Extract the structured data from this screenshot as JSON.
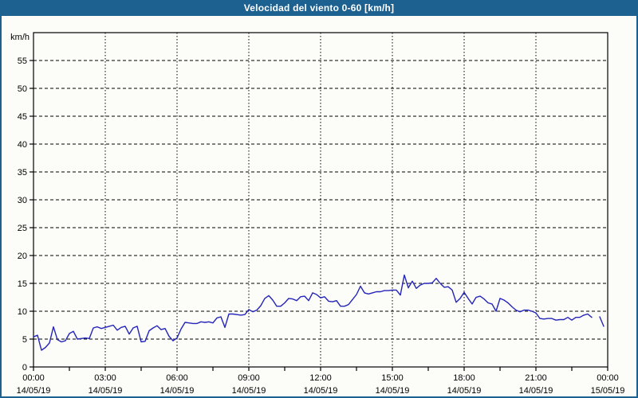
{
  "window": {
    "title": "Velocidad del viento 0-60 [km/h]"
  },
  "colors": {
    "title_bar": "#1d6191",
    "frame_border": "#1d6191",
    "background": "#fcfdf9",
    "plot_border": "#000000",
    "grid": "#000000",
    "tick_text": "#000000",
    "line": "#2424b8"
  },
  "chart_data": {
    "type": "line",
    "title": "Velocidad del viento 0-60 [km/h]",
    "ylabel": "km/h",
    "xlabel": "",
    "ylim": [
      0,
      60
    ],
    "ytick_step": 5,
    "ytick_labels": [
      "0",
      "5",
      "10",
      "15",
      "20",
      "25",
      "30",
      "35",
      "40",
      "45",
      "50",
      "55"
    ],
    "grid": "horizontal dashed every 5 km/h, vertical dotted every 3 h",
    "legend_position": "none",
    "x_axis": {
      "total_minutes": 1440,
      "major_tick_hours": 3,
      "minor_tick_hours": 1.5,
      "ticks": [
        {
          "time": "00:00",
          "date": "14/05/19"
        },
        {
          "time": "03:00",
          "date": "14/05/19"
        },
        {
          "time": "06:00",
          "date": "14/05/19"
        },
        {
          "time": "09:00",
          "date": "14/05/19"
        },
        {
          "time": "12:00",
          "date": "14/05/19"
        },
        {
          "time": "15:00",
          "date": "14/05/19"
        },
        {
          "time": "18:00",
          "date": "14/05/19"
        },
        {
          "time": "21:00",
          "date": "14/05/19"
        },
        {
          "time": "00:00",
          "date": "15/05/19"
        }
      ]
    },
    "series": [
      {
        "name": "Velocidad del viento",
        "unit": "km/h",
        "points": [
          [
            0,
            5.4
          ],
          [
            10,
            5.7
          ],
          [
            20,
            3.0
          ],
          [
            30,
            3.5
          ],
          [
            40,
            4.3
          ],
          [
            50,
            7.2
          ],
          [
            60,
            4.9
          ],
          [
            70,
            4.5
          ],
          [
            80,
            4.7
          ],
          [
            90,
            6.0
          ],
          [
            100,
            6.4
          ],
          [
            110,
            5.0
          ],
          [
            120,
            5.1
          ],
          [
            130,
            5.2
          ],
          [
            140,
            5.1
          ],
          [
            150,
            7.0
          ],
          [
            160,
            7.2
          ],
          [
            170,
            6.9
          ],
          [
            180,
            7.1
          ],
          [
            190,
            7.3
          ],
          [
            200,
            7.5
          ],
          [
            210,
            6.6
          ],
          [
            220,
            7.1
          ],
          [
            230,
            7.3
          ],
          [
            240,
            5.9
          ],
          [
            250,
            7.0
          ],
          [
            260,
            7.3
          ],
          [
            270,
            4.5
          ],
          [
            280,
            4.6
          ],
          [
            290,
            6.5
          ],
          [
            300,
            7.0
          ],
          [
            310,
            7.4
          ],
          [
            320,
            6.7
          ],
          [
            330,
            6.9
          ],
          [
            340,
            5.5
          ],
          [
            350,
            4.7
          ],
          [
            360,
            5.2
          ],
          [
            370,
            6.8
          ],
          [
            380,
            8.0
          ],
          [
            390,
            7.9
          ],
          [
            400,
            7.8
          ],
          [
            410,
            7.8
          ],
          [
            420,
            8.1
          ],
          [
            430,
            8.0
          ],
          [
            440,
            8.1
          ],
          [
            450,
            7.9
          ],
          [
            460,
            8.8
          ],
          [
            470,
            9.0
          ],
          [
            480,
            7.1
          ],
          [
            490,
            9.5
          ],
          [
            500,
            9.5
          ],
          [
            510,
            9.4
          ],
          [
            520,
            9.3
          ],
          [
            530,
            9.4
          ],
          [
            540,
            10.3
          ],
          [
            550,
            9.9
          ],
          [
            560,
            10.2
          ],
          [
            570,
            11.0
          ],
          [
            580,
            12.3
          ],
          [
            590,
            12.8
          ],
          [
            600,
            12.0
          ],
          [
            610,
            10.9
          ],
          [
            620,
            10.9
          ],
          [
            630,
            11.5
          ],
          [
            640,
            12.3
          ],
          [
            650,
            12.2
          ],
          [
            660,
            11.9
          ],
          [
            670,
            12.6
          ],
          [
            680,
            12.7
          ],
          [
            690,
            11.9
          ],
          [
            700,
            13.3
          ],
          [
            710,
            13.0
          ],
          [
            720,
            12.4
          ],
          [
            730,
            12.6
          ],
          [
            740,
            11.8
          ],
          [
            750,
            11.7
          ],
          [
            760,
            11.9
          ],
          [
            770,
            10.9
          ],
          [
            780,
            10.9
          ],
          [
            790,
            11.2
          ],
          [
            800,
            12.1
          ],
          [
            810,
            13.0
          ],
          [
            820,
            14.5
          ],
          [
            830,
            13.3
          ],
          [
            840,
            13.1
          ],
          [
            850,
            13.3
          ],
          [
            860,
            13.5
          ],
          [
            870,
            13.5
          ],
          [
            880,
            13.7
          ],
          [
            890,
            13.7
          ],
          [
            900,
            13.8
          ],
          [
            910,
            13.8
          ],
          [
            920,
            12.9
          ],
          [
            930,
            16.5
          ],
          [
            940,
            14.2
          ],
          [
            950,
            15.4
          ],
          [
            960,
            14.1
          ],
          [
            970,
            14.7
          ],
          [
            980,
            15.0
          ],
          [
            990,
            15.0
          ],
          [
            1000,
            15.1
          ],
          [
            1010,
            15.9
          ],
          [
            1020,
            15.0
          ],
          [
            1030,
            14.3
          ],
          [
            1040,
            14.4
          ],
          [
            1050,
            13.8
          ],
          [
            1060,
            11.6
          ],
          [
            1070,
            12.3
          ],
          [
            1080,
            13.4
          ],
          [
            1090,
            12.3
          ],
          [
            1100,
            11.3
          ],
          [
            1110,
            12.5
          ],
          [
            1120,
            12.7
          ],
          [
            1130,
            12.2
          ],
          [
            1140,
            11.5
          ],
          [
            1150,
            11.3
          ],
          [
            1160,
            10.0
          ],
          [
            1170,
            12.3
          ],
          [
            1180,
            12.0
          ],
          [
            1190,
            11.5
          ],
          [
            1200,
            10.8
          ],
          [
            1210,
            10.2
          ],
          [
            1220,
            9.9
          ],
          [
            1230,
            10.2
          ],
          [
            1240,
            10.2
          ],
          [
            1250,
            10.0
          ],
          [
            1260,
            9.7
          ],
          [
            1270,
            8.7
          ],
          [
            1280,
            8.6
          ],
          [
            1290,
            8.7
          ],
          [
            1300,
            8.7
          ],
          [
            1310,
            8.4
          ],
          [
            1320,
            8.5
          ],
          [
            1330,
            8.5
          ],
          [
            1340,
            8.9
          ],
          [
            1350,
            8.4
          ],
          [
            1360,
            8.9
          ],
          [
            1370,
            8.9
          ],
          [
            1380,
            9.3
          ],
          [
            1390,
            9.5
          ],
          [
            1400,
            8.9
          ],
          [
            1410,
            null
          ],
          [
            1420,
            9.0
          ],
          [
            1430,
            7.3
          ]
        ]
      }
    ]
  }
}
